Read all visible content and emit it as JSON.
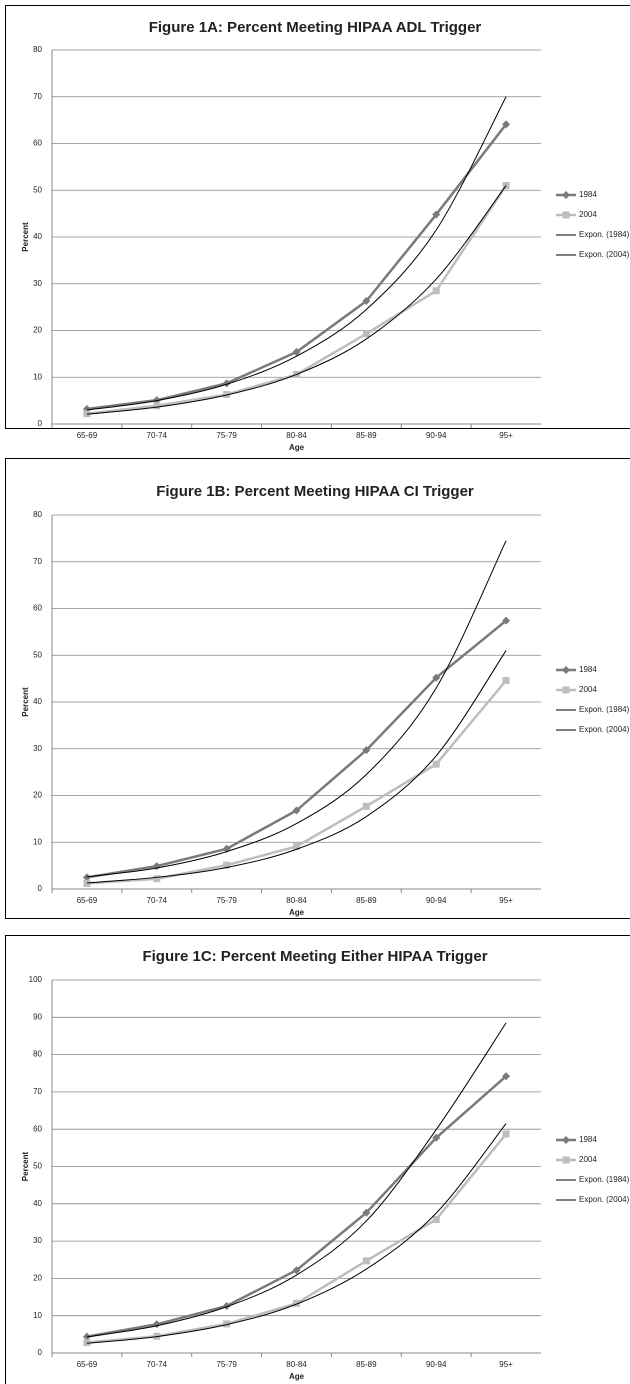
{
  "chart_data": [
    {
      "type": "line",
      "title": "Figure 1A: Percent Meeting HIPAA ADL Trigger",
      "x_label": "Age",
      "y_label": "Percent",
      "categories": [
        "65-69",
        "70-74",
        "75-79",
        "80-84",
        "85-89",
        "90-94",
        "95+"
      ],
      "ylim": [
        0,
        80
      ],
      "yticks": [
        0,
        10,
        20,
        30,
        40,
        50,
        60,
        70,
        80
      ],
      "grid": true,
      "legend": "right",
      "series": [
        {
          "name": "1984",
          "color": "#7a7a7a",
          "marker": "diamond",
          "values": [
            3.2,
            5.1,
            8.7,
            15.4,
            26.3,
            44.8,
            64.1
          ]
        },
        {
          "name": "2004",
          "color": "#bdbdbd",
          "marker": "square",
          "values": [
            2.2,
            3.9,
            6.3,
            10.6,
            19.3,
            28.5,
            51.0
          ]
        },
        {
          "name": "Expon. (1984)",
          "color": "#000000",
          "marker": "none",
          "values": [
            3.0,
            5.0,
            8.5,
            14.5,
            24.5,
            41.5,
            70.0
          ]
        },
        {
          "name": "Expon. (2004)",
          "color": "#000000",
          "marker": "none",
          "values": [
            2.1,
            3.6,
            6.2,
            10.6,
            18.2,
            31.0,
            51.0
          ]
        }
      ]
    },
    {
      "type": "line",
      "title": "Figure 1B: Percent Meeting HIPAA CI Trigger",
      "x_label": "Age",
      "y_label": "Percent",
      "categories": [
        "65-69",
        "70-74",
        "75-79",
        "80-84",
        "85-89",
        "90-94",
        "95+"
      ],
      "ylim": [
        0,
        80
      ],
      "yticks": [
        0,
        10,
        20,
        30,
        40,
        50,
        60,
        70,
        80
      ],
      "grid": true,
      "legend": "right",
      "series": [
        {
          "name": "1984",
          "color": "#7a7a7a",
          "marker": "diamond",
          "values": [
            2.5,
            4.9,
            8.6,
            16.8,
            29.7,
            45.2,
            57.4
          ]
        },
        {
          "name": "2004",
          "color": "#bdbdbd",
          "marker": "square",
          "values": [
            1.2,
            2.2,
            5.1,
            9.1,
            17.7,
            26.7,
            44.6
          ]
        },
        {
          "name": "Expon. (1984)",
          "color": "#000000",
          "marker": "none",
          "values": [
            2.6,
            4.5,
            8.0,
            14.0,
            24.5,
            43.0,
            74.5
          ]
        },
        {
          "name": "Expon. (2004)",
          "color": "#000000",
          "marker": "none",
          "values": [
            1.3,
            2.5,
            4.6,
            8.5,
            15.5,
            28.5,
            51.0
          ]
        }
      ]
    },
    {
      "type": "line",
      "title": "Figure 1C: Percent Meeting Either HIPAA Trigger",
      "x_label": "Age",
      "y_label": "Percent",
      "categories": [
        "65-69",
        "70-74",
        "75-79",
        "80-84",
        "85-89",
        "90-94",
        "95+"
      ],
      "ylim": [
        0,
        100
      ],
      "yticks": [
        0,
        10,
        20,
        30,
        40,
        50,
        60,
        70,
        80,
        90,
        100
      ],
      "grid": true,
      "legend": "right",
      "series": [
        {
          "name": "1984",
          "color": "#7a7a7a",
          "marker": "diamond",
          "values": [
            4.4,
            7.7,
            12.6,
            22.2,
            37.6,
            57.7,
            74.2
          ]
        },
        {
          "name": "2004",
          "color": "#bdbdbd",
          "marker": "square",
          "values": [
            2.8,
            4.5,
            7.8,
            13.3,
            24.7,
            35.8,
            58.7
          ]
        },
        {
          "name": "Expon. (1984)",
          "color": "#000000",
          "marker": "none",
          "values": [
            4.3,
            7.3,
            12.4,
            20.9,
            35.4,
            59.9,
            88.5
          ]
        },
        {
          "name": "Expon. (2004)",
          "color": "#000000",
          "marker": "none",
          "values": [
            2.6,
            4.4,
            7.6,
            13.1,
            22.5,
            37.5,
            61.5
          ]
        }
      ]
    }
  ]
}
